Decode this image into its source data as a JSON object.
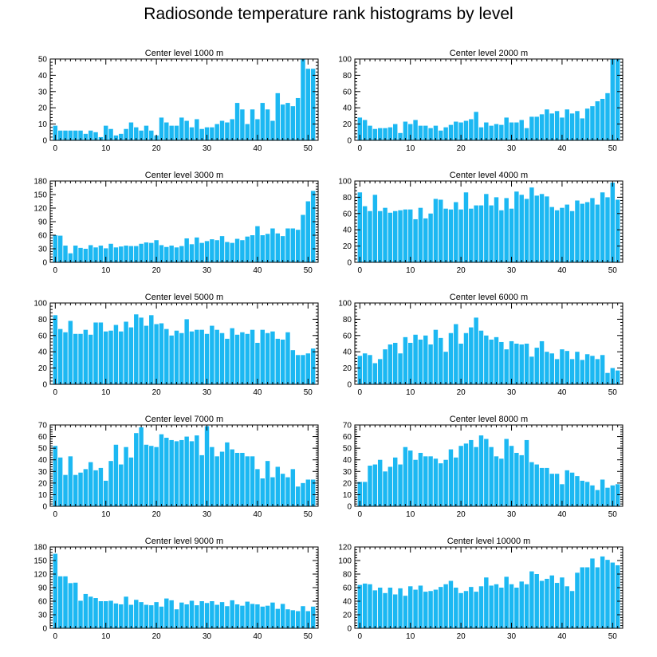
{
  "figure_title": "Radiosonde temperature rank histograms by level",
  "colors": {
    "bar": "#1cb8f2",
    "axis": "#000000",
    "background": "#ffffff"
  },
  "chart_data": [
    {
      "type": "bar",
      "title": "Center level 1000 m",
      "xlabel": "",
      "ylabel": "",
      "xlim": [
        -1,
        52
      ],
      "ylim": [
        0,
        50
      ],
      "xticks": [
        0,
        10,
        20,
        30,
        40,
        50
      ],
      "yticks": [
        0,
        10,
        20,
        30,
        40,
        50
      ],
      "x": [
        0,
        1,
        2,
        3,
        4,
        5,
        6,
        7,
        8,
        9,
        10,
        11,
        12,
        13,
        14,
        15,
        16,
        17,
        18,
        19,
        20,
        21,
        22,
        23,
        24,
        25,
        26,
        27,
        28,
        29,
        30,
        31,
        32,
        33,
        34,
        35,
        36,
        37,
        38,
        39,
        40,
        41,
        42,
        43,
        44,
        45,
        46,
        47,
        48,
        49,
        50,
        51
      ],
      "values": [
        9,
        6,
        6,
        6,
        6,
        6,
        4,
        6,
        5,
        2,
        9,
        7,
        3,
        4,
        7,
        11,
        8,
        6,
        9,
        6,
        3,
        14,
        11,
        9,
        9,
        14,
        12,
        8,
        13,
        7,
        8,
        8,
        10,
        12,
        11,
        13,
        23,
        19,
        10,
        19,
        13,
        23,
        19,
        12,
        29,
        22,
        23,
        21,
        26,
        50,
        44,
        44
      ]
    },
    {
      "type": "bar",
      "title": "Center level 2000 m",
      "xlabel": "",
      "ylabel": "",
      "xlim": [
        -1,
        52
      ],
      "ylim": [
        0,
        100
      ],
      "xticks": [
        0,
        10,
        20,
        30,
        40,
        50
      ],
      "yticks": [
        0,
        20,
        40,
        60,
        80,
        100
      ],
      "x": [
        0,
        1,
        2,
        3,
        4,
        5,
        6,
        7,
        8,
        9,
        10,
        11,
        12,
        13,
        14,
        15,
        16,
        17,
        18,
        19,
        20,
        21,
        22,
        23,
        24,
        25,
        26,
        27,
        28,
        29,
        30,
        31,
        32,
        33,
        34,
        35,
        36,
        37,
        38,
        39,
        40,
        41,
        42,
        43,
        44,
        45,
        46,
        47,
        48,
        49,
        50,
        51
      ],
      "values": [
        28,
        25,
        18,
        14,
        15,
        15,
        16,
        20,
        9,
        23,
        20,
        25,
        18,
        18,
        15,
        18,
        12,
        16,
        19,
        23,
        22,
        24,
        26,
        35,
        16,
        22,
        18,
        20,
        19,
        28,
        22,
        22,
        25,
        15,
        29,
        29,
        32,
        38,
        33,
        36,
        28,
        38,
        33,
        36,
        27,
        39,
        42,
        48,
        51,
        58,
        100,
        100
      ]
    },
    {
      "type": "bar",
      "title": "Center level 3000 m",
      "xlabel": "",
      "ylabel": "",
      "xlim": [
        -1,
        52
      ],
      "ylim": [
        0,
        180
      ],
      "xticks": [
        0,
        10,
        20,
        30,
        40,
        50
      ],
      "yticks": [
        0,
        30,
        60,
        90,
        120,
        150,
        180
      ],
      "x": [
        0,
        1,
        2,
        3,
        4,
        5,
        6,
        7,
        8,
        9,
        10,
        11,
        12,
        13,
        14,
        15,
        16,
        17,
        18,
        19,
        20,
        21,
        22,
        23,
        24,
        25,
        26,
        27,
        28,
        29,
        30,
        31,
        32,
        33,
        34,
        35,
        36,
        37,
        38,
        39,
        40,
        41,
        42,
        43,
        44,
        45,
        46,
        47,
        48,
        49,
        50,
        51
      ],
      "values": [
        60,
        59,
        37,
        20,
        37,
        32,
        30,
        38,
        33,
        37,
        31,
        41,
        33,
        35,
        37,
        36,
        36,
        41,
        44,
        43,
        49,
        38,
        34,
        37,
        33,
        36,
        53,
        40,
        55,
        43,
        47,
        51,
        49,
        58,
        45,
        43,
        52,
        49,
        57,
        60,
        80,
        60,
        63,
        75,
        64,
        58,
        75,
        75,
        72,
        105,
        135,
        158
      ]
    },
    {
      "type": "bar",
      "title": "Center level 4000 m",
      "xlabel": "",
      "ylabel": "",
      "xlim": [
        -1,
        52
      ],
      "ylim": [
        0,
        100
      ],
      "xticks": [
        0,
        10,
        20,
        30,
        40,
        50
      ],
      "yticks": [
        0,
        20,
        40,
        60,
        80,
        100
      ],
      "x": [
        0,
        1,
        2,
        3,
        4,
        5,
        6,
        7,
        8,
        9,
        10,
        11,
        12,
        13,
        14,
        15,
        16,
        17,
        18,
        19,
        20,
        21,
        22,
        23,
        24,
        25,
        26,
        27,
        28,
        29,
        30,
        31,
        32,
        33,
        34,
        35,
        36,
        37,
        38,
        39,
        40,
        41,
        42,
        43,
        44,
        45,
        46,
        47,
        48,
        49,
        50,
        51
      ],
      "values": [
        86,
        69,
        63,
        83,
        63,
        67,
        61,
        63,
        64,
        65,
        65,
        53,
        67,
        54,
        60,
        78,
        77,
        66,
        65,
        74,
        65,
        86,
        66,
        70,
        70,
        84,
        70,
        80,
        64,
        79,
        66,
        87,
        83,
        78,
        92,
        82,
        84,
        81,
        68,
        64,
        67,
        71,
        63,
        76,
        72,
        74,
        79,
        71,
        86,
        80,
        98,
        77
      ]
    },
    {
      "type": "bar",
      "title": "Center level 5000 m",
      "xlabel": "",
      "ylabel": "",
      "xlim": [
        -1,
        52
      ],
      "ylim": [
        0,
        100
      ],
      "xticks": [
        0,
        10,
        20,
        30,
        40,
        50
      ],
      "yticks": [
        0,
        20,
        40,
        60,
        80,
        100
      ],
      "x": [
        0,
        1,
        2,
        3,
        4,
        5,
        6,
        7,
        8,
        9,
        10,
        11,
        12,
        13,
        14,
        15,
        16,
        17,
        18,
        19,
        20,
        21,
        22,
        23,
        24,
        25,
        26,
        27,
        28,
        29,
        30,
        31,
        32,
        33,
        34,
        35,
        36,
        37,
        38,
        39,
        40,
        41,
        42,
        43,
        44,
        45,
        46,
        47,
        48,
        49,
        50,
        51
      ],
      "values": [
        85,
        68,
        64,
        78,
        62,
        62,
        67,
        61,
        76,
        76,
        65,
        66,
        73,
        65,
        77,
        70,
        86,
        82,
        72,
        85,
        74,
        75,
        68,
        60,
        66,
        63,
        80,
        65,
        67,
        67,
        62,
        72,
        67,
        63,
        56,
        69,
        61,
        64,
        62,
        67,
        51,
        67,
        63,
        65,
        56,
        55,
        64,
        42,
        36,
        36,
        38,
        44
      ]
    },
    {
      "type": "bar",
      "title": "Center level 6000 m",
      "xlabel": "",
      "ylabel": "",
      "xlim": [
        -1,
        52
      ],
      "ylim": [
        0,
        100
      ],
      "xticks": [
        0,
        10,
        20,
        30,
        40,
        50
      ],
      "yticks": [
        0,
        20,
        40,
        60,
        80,
        100
      ],
      "x": [
        0,
        1,
        2,
        3,
        4,
        5,
        6,
        7,
        8,
        9,
        10,
        11,
        12,
        13,
        14,
        15,
        16,
        17,
        18,
        19,
        20,
        21,
        22,
        23,
        24,
        25,
        26,
        27,
        28,
        29,
        30,
        31,
        32,
        33,
        34,
        35,
        36,
        37,
        38,
        39,
        40,
        41,
        42,
        43,
        44,
        45,
        46,
        47,
        48,
        49,
        50,
        51
      ],
      "values": [
        35,
        38,
        36,
        26,
        31,
        43,
        49,
        51,
        38,
        58,
        51,
        61,
        55,
        60,
        49,
        67,
        57,
        40,
        63,
        74,
        50,
        63,
        70,
        82,
        66,
        60,
        55,
        58,
        52,
        43,
        53,
        50,
        49,
        50,
        34,
        45,
        53,
        40,
        38,
        31,
        43,
        41,
        31,
        40,
        30,
        37,
        35,
        31,
        36,
        14,
        20,
        17
      ]
    },
    {
      "type": "bar",
      "title": "Center level 7000 m",
      "xlabel": "",
      "ylabel": "",
      "xlim": [
        -1,
        52
      ],
      "ylim": [
        0,
        70
      ],
      "xticks": [
        0,
        10,
        20,
        30,
        40,
        50
      ],
      "yticks": [
        0,
        10,
        20,
        30,
        40,
        50,
        60,
        70
      ],
      "x": [
        0,
        1,
        2,
        3,
        4,
        5,
        6,
        7,
        8,
        9,
        10,
        11,
        12,
        13,
        14,
        15,
        16,
        17,
        18,
        19,
        20,
        21,
        22,
        23,
        24,
        25,
        26,
        27,
        28,
        29,
        30,
        31,
        32,
        33,
        34,
        35,
        36,
        37,
        38,
        39,
        40,
        41,
        42,
        43,
        44,
        45,
        46,
        47,
        48,
        49,
        50,
        51
      ],
      "values": [
        52,
        42,
        27,
        43,
        27,
        29,
        32,
        38,
        31,
        33,
        22,
        39,
        53,
        36,
        51,
        42,
        63,
        68,
        53,
        52,
        51,
        62,
        59,
        57,
        56,
        57,
        60,
        56,
        61,
        44,
        69,
        51,
        43,
        47,
        55,
        49,
        46,
        46,
        43,
        43,
        32,
        24,
        39,
        25,
        34,
        28,
        25,
        32,
        17,
        20,
        23,
        23
      ]
    },
    {
      "type": "bar",
      "title": "Center level 8000 m",
      "xlabel": "",
      "ylabel": "",
      "xlim": [
        -1,
        52
      ],
      "ylim": [
        0,
        70
      ],
      "xticks": [
        0,
        10,
        20,
        30,
        40,
        50
      ],
      "yticks": [
        0,
        10,
        20,
        30,
        40,
        50,
        60,
        70
      ],
      "x": [
        0,
        1,
        2,
        3,
        4,
        5,
        6,
        7,
        8,
        9,
        10,
        11,
        12,
        13,
        14,
        15,
        16,
        17,
        18,
        19,
        20,
        21,
        22,
        23,
        24,
        25,
        26,
        27,
        28,
        29,
        30,
        31,
        32,
        33,
        34,
        35,
        36,
        37,
        38,
        39,
        40,
        41,
        42,
        43,
        44,
        45,
        46,
        47,
        48,
        49,
        50,
        51
      ],
      "values": [
        21,
        21,
        35,
        36,
        40,
        30,
        34,
        42,
        36,
        51,
        48,
        40,
        46,
        43,
        43,
        41,
        37,
        40,
        49,
        42,
        52,
        54,
        57,
        51,
        61,
        58,
        51,
        43,
        41,
        58,
        52,
        46,
        44,
        57,
        38,
        36,
        33,
        33,
        28,
        28,
        19,
        31,
        29,
        26,
        22,
        21,
        18,
        14,
        23,
        16,
        18,
        19
      ]
    },
    {
      "type": "bar",
      "title": "Center level 9000 m",
      "xlabel": "",
      "ylabel": "",
      "xlim": [
        -1,
        52
      ],
      "ylim": [
        0,
        180
      ],
      "xticks": [
        0,
        10,
        20,
        30,
        40,
        50
      ],
      "yticks": [
        0,
        30,
        60,
        90,
        120,
        150,
        180
      ],
      "x": [
        0,
        1,
        2,
        3,
        4,
        5,
        6,
        7,
        8,
        9,
        10,
        11,
        12,
        13,
        14,
        15,
        16,
        17,
        18,
        19,
        20,
        21,
        22,
        23,
        24,
        25,
        26,
        27,
        28,
        29,
        30,
        31,
        32,
        33,
        34,
        35,
        36,
        37,
        38,
        39,
        40,
        41,
        42,
        43,
        44,
        45,
        46,
        47,
        48,
        49,
        50,
        51
      ],
      "values": [
        165,
        115,
        115,
        100,
        101,
        61,
        76,
        70,
        67,
        60,
        60,
        61,
        55,
        53,
        70,
        52,
        63,
        58,
        52,
        51,
        58,
        48,
        66,
        62,
        42,
        57,
        53,
        61,
        51,
        60,
        56,
        60,
        52,
        58,
        49,
        62,
        53,
        50,
        59,
        54,
        53,
        48,
        50,
        57,
        43,
        54,
        42,
        40,
        38,
        49,
        38,
        48
      ]
    },
    {
      "type": "bar",
      "title": "Center level 10000 m",
      "xlabel": "",
      "ylabel": "",
      "xlim": [
        -1,
        52
      ],
      "ylim": [
        0,
        120
      ],
      "xticks": [
        0,
        10,
        20,
        30,
        40,
        50
      ],
      "yticks": [
        0,
        20,
        40,
        60,
        80,
        100,
        120
      ],
      "x": [
        0,
        1,
        2,
        3,
        4,
        5,
        6,
        7,
        8,
        9,
        10,
        11,
        12,
        13,
        14,
        15,
        16,
        17,
        18,
        19,
        20,
        21,
        22,
        23,
        24,
        25,
        26,
        27,
        28,
        29,
        30,
        31,
        32,
        33,
        34,
        35,
        36,
        37,
        38,
        39,
        40,
        41,
        42,
        43,
        44,
        45,
        46,
        47,
        48,
        49,
        50,
        51
      ],
      "values": [
        64,
        66,
        65,
        56,
        60,
        52,
        60,
        50,
        59,
        48,
        62,
        57,
        63,
        54,
        55,
        57,
        61,
        65,
        70,
        60,
        52,
        55,
        61,
        54,
        62,
        75,
        63,
        65,
        60,
        76,
        65,
        60,
        69,
        65,
        84,
        80,
        70,
        73,
        78,
        67,
        75,
        62,
        55,
        82,
        90,
        90,
        103,
        90,
        106,
        101,
        97,
        93
      ]
    }
  ]
}
